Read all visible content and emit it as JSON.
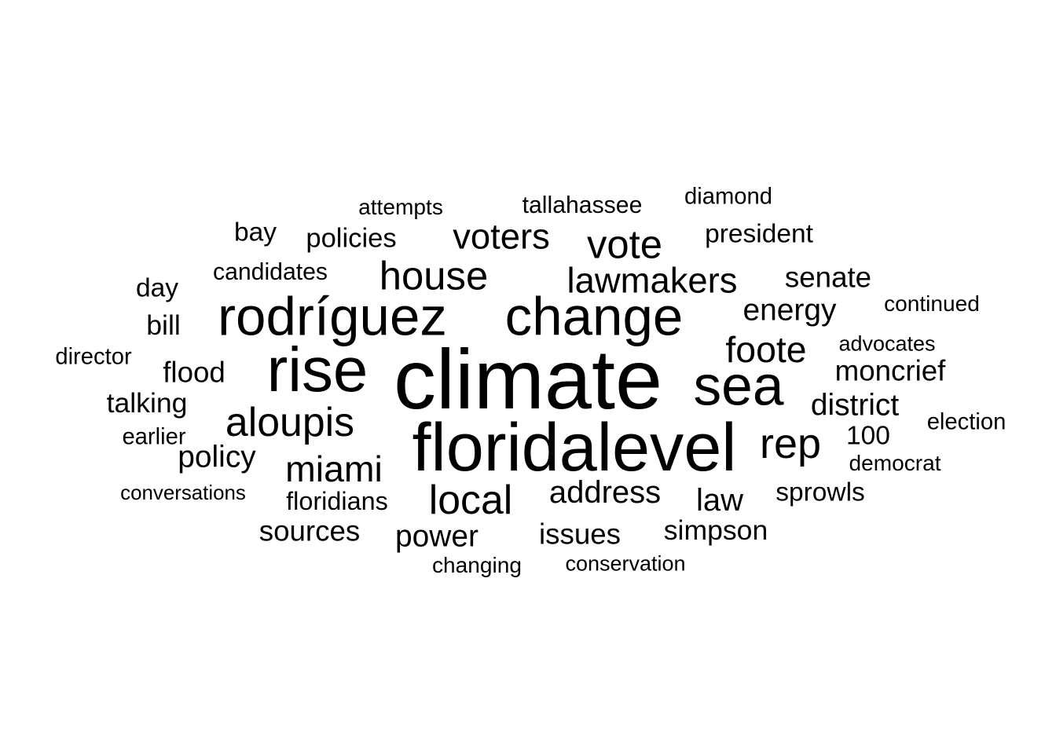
{
  "word_cloud": {
    "text_color": "#000000",
    "background_color": "#ffffff",
    "words": [
      {
        "text": "climate",
        "weight": 100
      },
      {
        "text": "floridalevel",
        "weight": 80
      },
      {
        "text": "rise",
        "weight": 74
      },
      {
        "text": "sea",
        "weight": 66
      },
      {
        "text": "rodríguez",
        "weight": 64
      },
      {
        "text": "change",
        "weight": 64
      },
      {
        "text": "rep",
        "weight": 50
      },
      {
        "text": "aloupis",
        "weight": 48
      },
      {
        "text": "local",
        "weight": 48
      },
      {
        "text": "house",
        "weight": 47
      },
      {
        "text": "vote",
        "weight": 47
      },
      {
        "text": "foote",
        "weight": 43
      },
      {
        "text": "miami",
        "weight": 43
      },
      {
        "text": "voters",
        "weight": 42
      },
      {
        "text": "lawmakers",
        "weight": 42
      },
      {
        "text": "address",
        "weight": 37
      },
      {
        "text": "law",
        "weight": 37
      },
      {
        "text": "district",
        "weight": 36
      },
      {
        "text": "policy",
        "weight": 36
      },
      {
        "text": "power",
        "weight": 36
      },
      {
        "text": "energy",
        "weight": 36
      },
      {
        "text": "moncrief",
        "weight": 34
      },
      {
        "text": "flood",
        "weight": 34
      },
      {
        "text": "issues",
        "weight": 34
      },
      {
        "text": "senate",
        "weight": 34
      },
      {
        "text": "sources",
        "weight": 34
      },
      {
        "text": "simpson",
        "weight": 33
      },
      {
        "text": "talking",
        "weight": 33
      },
      {
        "text": "policies",
        "weight": 32
      },
      {
        "text": "bill",
        "weight": 33
      },
      {
        "text": "president",
        "weight": 31
      },
      {
        "text": "bay",
        "weight": 31
      },
      {
        "text": "day",
        "weight": 31
      },
      {
        "text": "100",
        "weight": 31
      },
      {
        "text": "sprowls",
        "weight": 31
      },
      {
        "text": "floridians",
        "weight": 30
      },
      {
        "text": "tallahassee",
        "weight": 28
      },
      {
        "text": "candidates",
        "weight": 28
      },
      {
        "text": "earlier",
        "weight": 27
      },
      {
        "text": "diamond",
        "weight": 27
      },
      {
        "text": "director",
        "weight": 27
      },
      {
        "text": "election",
        "weight": 27
      },
      {
        "text": "attempts",
        "weight": 26
      },
      {
        "text": "changing",
        "weight": 26
      },
      {
        "text": "continued",
        "weight": 26
      },
      {
        "text": "democrat",
        "weight": 26
      },
      {
        "text": "advocates",
        "weight": 25
      },
      {
        "text": "conservation",
        "weight": 25
      },
      {
        "text": "conversations",
        "weight": 24
      }
    ]
  }
}
